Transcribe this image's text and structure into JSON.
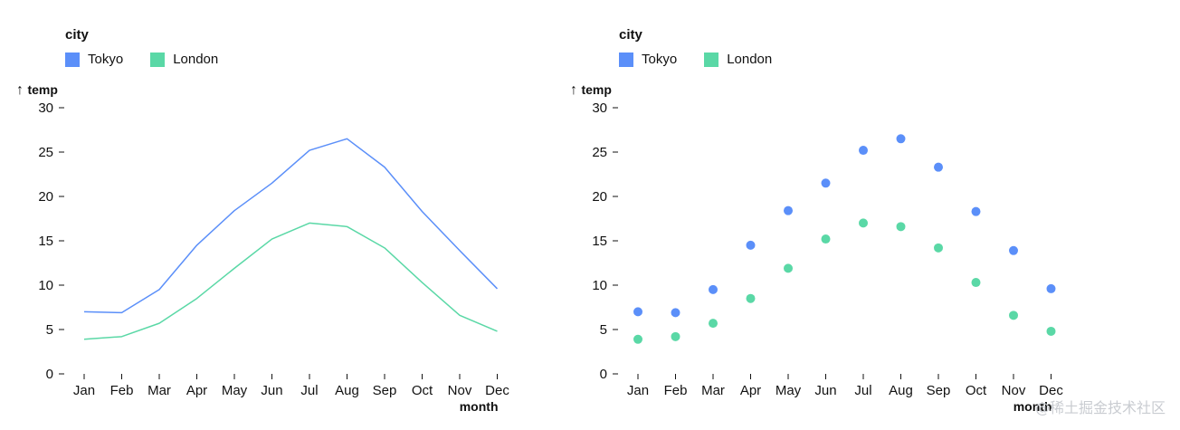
{
  "chart_data": [
    {
      "type": "line",
      "legend_title": "city",
      "legend_placement": "top-left",
      "xlabel": "month",
      "ylabel": "temp",
      "ylabel_arrow": "↑",
      "ylim": [
        0,
        30
      ],
      "yticks": [
        0,
        5,
        10,
        15,
        20,
        25,
        30
      ],
      "grid": false,
      "categories": [
        "Jan",
        "Feb",
        "Mar",
        "Apr",
        "May",
        "Jun",
        "Jul",
        "Aug",
        "Sep",
        "Oct",
        "Nov",
        "Dec"
      ],
      "series": [
        {
          "name": "Tokyo",
          "color": "#5b8ff9",
          "values": [
            7.0,
            6.9,
            9.5,
            14.5,
            18.4,
            21.5,
            25.2,
            26.5,
            23.3,
            18.3,
            13.9,
            9.6
          ]
        },
        {
          "name": "London",
          "color": "#5ad8a6",
          "values": [
            3.9,
            4.2,
            5.7,
            8.5,
            11.9,
            15.2,
            17.0,
            16.6,
            14.2,
            10.3,
            6.6,
            4.8
          ]
        }
      ]
    },
    {
      "type": "scatter",
      "legend_title": "city",
      "legend_placement": "top-left",
      "xlabel": "month",
      "ylabel": "temp",
      "ylabel_arrow": "↑",
      "ylim": [
        0,
        30
      ],
      "yticks": [
        0,
        5,
        10,
        15,
        20,
        25,
        30
      ],
      "grid": false,
      "categories": [
        "Jan",
        "Feb",
        "Mar",
        "Apr",
        "May",
        "Jun",
        "Jul",
        "Aug",
        "Sep",
        "Oct",
        "Nov",
        "Dec"
      ],
      "series": [
        {
          "name": "Tokyo",
          "color": "#5b8ff9",
          "values": [
            7.0,
            6.9,
            9.5,
            14.5,
            18.4,
            21.5,
            25.2,
            26.5,
            23.3,
            18.3,
            13.9,
            9.6
          ]
        },
        {
          "name": "London",
          "color": "#5ad8a6",
          "values": [
            3.9,
            4.2,
            5.7,
            8.5,
            11.9,
            15.2,
            17.0,
            16.6,
            14.2,
            10.3,
            6.6,
            4.8
          ]
        }
      ]
    }
  ],
  "watermark": "@稀土掘金技术社区"
}
